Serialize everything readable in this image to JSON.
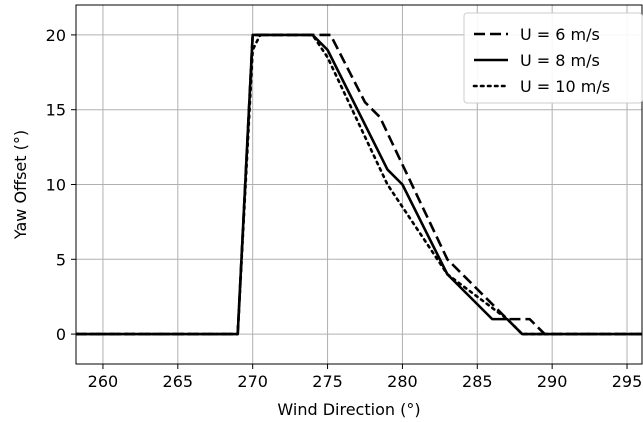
{
  "chart_data": {
    "type": "line",
    "xlabel": "Wind Direction (°)",
    "ylabel": "Yaw Offset (°)",
    "xlim": [
      258.2,
      296
    ],
    "ylim": [
      -2,
      22
    ],
    "xticks": [
      260,
      265,
      270,
      275,
      280,
      285,
      290,
      295
    ],
    "yticks": [
      0,
      5,
      10,
      15,
      20
    ],
    "xtick_labels": [
      "260",
      "265",
      "270",
      "275",
      "280",
      "285",
      "290",
      "295"
    ],
    "ytick_labels": [
      "0",
      "5",
      "10",
      "15",
      "20"
    ],
    "grid": true,
    "legend_position": "top-right",
    "series": [
      {
        "name": "U = 6 m/s",
        "style": "dashed",
        "color": "#000000",
        "x": [
          258.2,
          269,
          270,
          275.2,
          277.5,
          278.5,
          283,
          287,
          288.5,
          289.5,
          296
        ],
        "y": [
          0,
          0,
          20,
          20,
          15.5,
          14.5,
          5,
          1,
          1,
          0,
          0
        ]
      },
      {
        "name": "U = 8 m/s",
        "style": "solid",
        "color": "#000000",
        "x": [
          258.2,
          269,
          270,
          274,
          275,
          279,
          280,
          283,
          286,
          287,
          288,
          296
        ],
        "y": [
          0,
          0,
          20,
          20,
          19,
          11,
          10,
          4,
          1,
          1,
          0,
          0
        ]
      },
      {
        "name": "U = 10 m/s",
        "style": "dotted",
        "color": "#000000",
        "x": [
          258.2,
          269,
          270,
          270.5,
          274,
          275,
          279,
          280,
          283,
          287,
          288,
          296
        ],
        "y": [
          0,
          0,
          19,
          20,
          20,
          18.5,
          10,
          8.5,
          4,
          1,
          0,
          0
        ]
      }
    ]
  }
}
